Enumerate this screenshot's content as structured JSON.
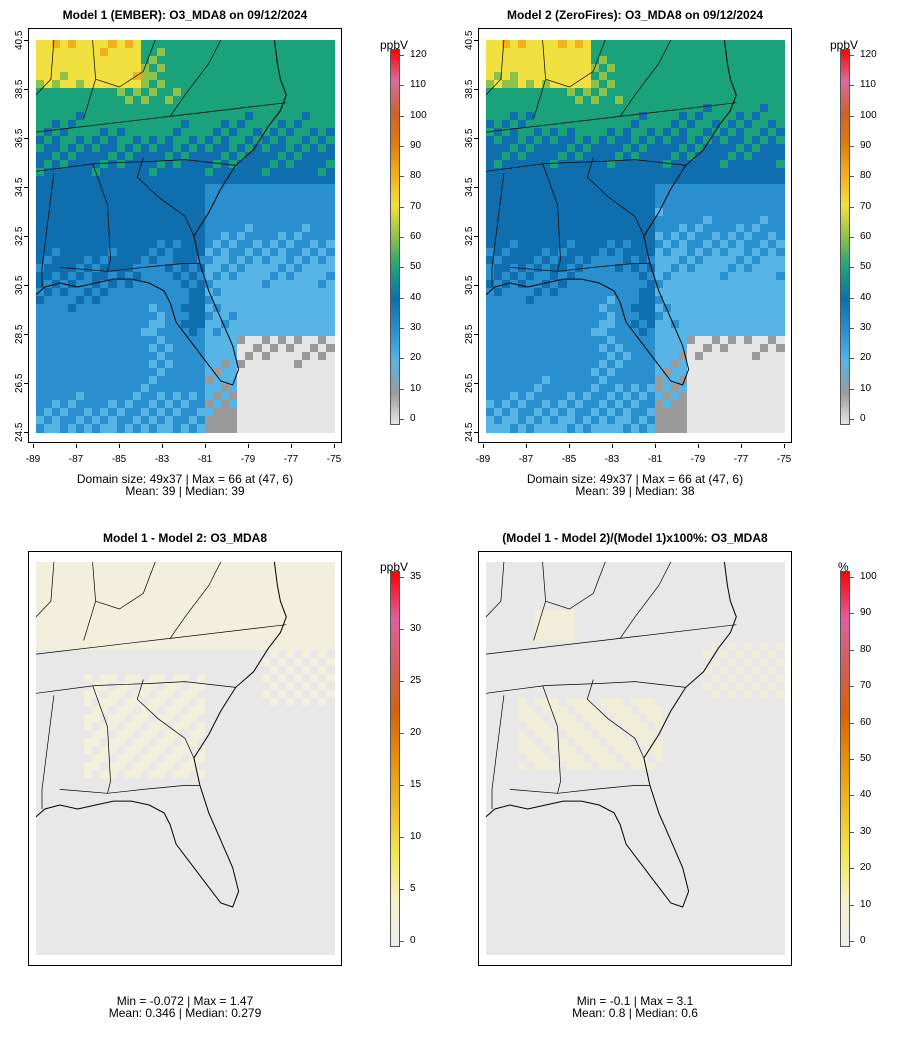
{
  "panels": [
    {
      "id": "p1",
      "title": "Model 1 (EMBER): O3_MDA8 on 09/12/2024",
      "stats_line1": "Domain size: 49x37 | Max = 66 at (47, 6)",
      "stats_line2": "Mean: 39 |  Median: 39",
      "x_ticks": [
        "-89",
        "-87",
        "-85",
        "-83",
        "-81",
        "-79",
        "-77",
        "-75"
      ],
      "y_ticks": [
        "24.5",
        "26.5",
        "28.5",
        "30.5",
        "32.5",
        "34.5",
        "36.5",
        "38.5",
        "40.5"
      ],
      "colorbar": {
        "unit": "ppbV",
        "ticks": [
          "0",
          "10",
          "20",
          "30",
          "40",
          "50",
          "60",
          "70",
          "80",
          "90",
          "100",
          "110",
          "120"
        ]
      }
    },
    {
      "id": "p2",
      "title": "Model 2 (ZeroFires): O3_MDA8 on 09/12/2024",
      "stats_line1": "Domain size: 49x37 | Max = 66 at (47, 6)",
      "stats_line2": "Mean: 39 |  Median: 38",
      "x_ticks": [
        "-89",
        "-87",
        "-85",
        "-83",
        "-81",
        "-79",
        "-77",
        "-75"
      ],
      "y_ticks": [
        "24.5",
        "26.5",
        "28.5",
        "30.5",
        "32.5",
        "34.5",
        "36.5",
        "38.5",
        "40.5"
      ],
      "colorbar": {
        "unit": "ppbV",
        "ticks": [
          "0",
          "10",
          "20",
          "30",
          "40",
          "50",
          "60",
          "70",
          "80",
          "90",
          "100",
          "110",
          "120"
        ]
      }
    },
    {
      "id": "p3",
      "title": "Model 1 - Model 2: O3_MDA8",
      "stats_line1": "Min = -0.072 | Max = 1.47",
      "stats_line2": "Mean: 0.346 |  Median: 0.279",
      "colorbar": {
        "unit": "ppbV",
        "ticks": [
          "0",
          "5",
          "10",
          "15",
          "20",
          "25",
          "30",
          "35"
        ]
      }
    },
    {
      "id": "p4",
      "title": "(Model 1 - Model 2)/(Model 1)x100%: O3_MDA8",
      "stats_line1": "Min = -0.1 | Max = 3.1",
      "stats_line2": "Mean: 0.8 |  Median: 0.6",
      "colorbar": {
        "unit": "%",
        "ticks": [
          "0",
          "10",
          "20",
          "30",
          "40",
          "50",
          "60",
          "70",
          "80",
          "90",
          "100"
        ]
      }
    }
  ],
  "colors": {
    "ozone_scale": [
      "#e6e6e6",
      "#9a9a9a",
      "#57b5e6",
      "#2a8fcf",
      "#0f6fae",
      "#1aa27a",
      "#8cc24a",
      "#f0e040",
      "#f2b01e",
      "#e07a10",
      "#d0602a",
      "#d76fa0",
      "#ff0000"
    ],
    "diff_scale": [
      "#ededed",
      "#f4f0c8",
      "#f2e650",
      "#f0b824",
      "#e8900c",
      "#d8600a",
      "#d0605a",
      "#e0609a",
      "#ff0000"
    ]
  }
}
